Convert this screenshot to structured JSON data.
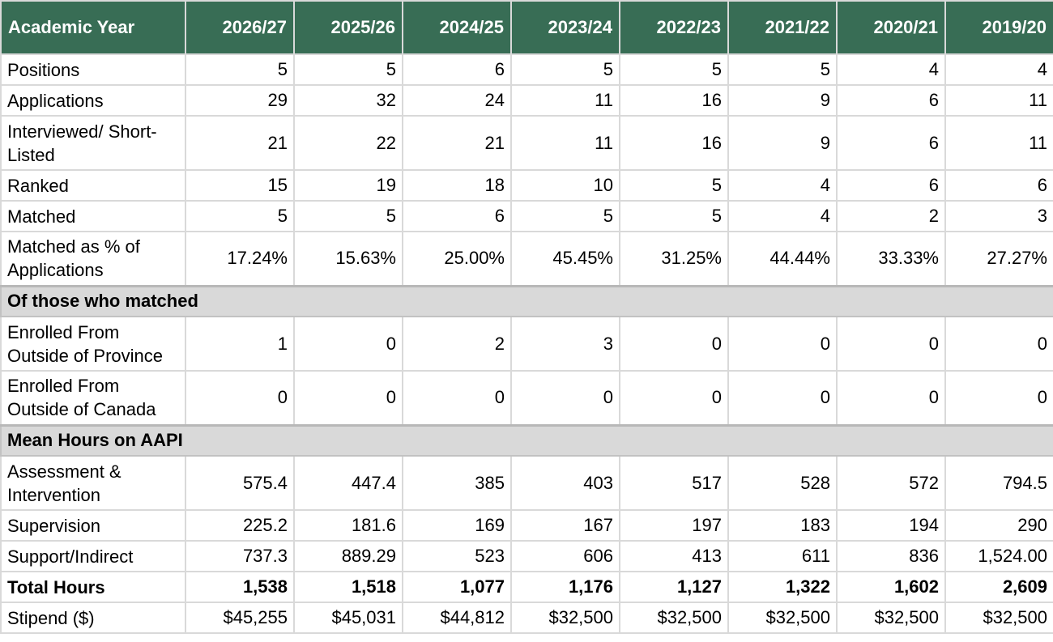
{
  "table": {
    "header": {
      "label": "Academic Year",
      "years": [
        "2026/27",
        "2025/26",
        "2024/25",
        "2023/24",
        "2022/23",
        "2021/22",
        "2020/21",
        "2019/20"
      ]
    },
    "rows": [
      {
        "name": "positions",
        "label": "Positions",
        "values": [
          "5",
          "5",
          "6",
          "5",
          "5",
          "5",
          "4",
          "4"
        ]
      },
      {
        "name": "applications",
        "label": "Applications",
        "values": [
          "29",
          "32",
          "24",
          "11",
          "16",
          "9",
          "6",
          "11"
        ]
      },
      {
        "name": "interviewed",
        "label": "Interviewed/ Short-Listed",
        "values": [
          "21",
          "22",
          "21",
          "11",
          "16",
          "9",
          "6",
          "11"
        ]
      },
      {
        "name": "ranked",
        "label": "Ranked",
        "values": [
          "15",
          "19",
          "18",
          "10",
          "5",
          "4",
          "6",
          "6"
        ]
      },
      {
        "name": "matched",
        "label": "Matched",
        "values": [
          "5",
          "5",
          "6",
          "5",
          "5",
          "4",
          "2",
          "3"
        ]
      },
      {
        "name": "matched-pct",
        "label": "Matched as % of Applications",
        "values": [
          "17.24%",
          "15.63%",
          "25.00%",
          "45.45%",
          "31.25%",
          "44.44%",
          "33.33%",
          "27.27%"
        ]
      }
    ],
    "section_matched": {
      "label": "Of those who matched",
      "rows": [
        {
          "name": "outside-province",
          "label": "Enrolled From Outside of Province",
          "values": [
            "1",
            "0",
            "2",
            "3",
            "0",
            "0",
            "0",
            "0"
          ]
        },
        {
          "name": "outside-canada",
          "label": "Enrolled From Outside of Canada",
          "values": [
            "0",
            "0",
            "0",
            "0",
            "0",
            "0",
            "0",
            "0"
          ]
        }
      ]
    },
    "section_hours": {
      "label": "Mean Hours on AAPI",
      "rows": [
        {
          "name": "assessment",
          "label": "Assessment & Intervention",
          "values": [
            "575.4",
            "447.4",
            "385",
            "403",
            "517",
            "528",
            "572",
            "794.5"
          ]
        },
        {
          "name": "supervision",
          "label": "Supervision",
          "values": [
            "225.2",
            "181.6",
            "169",
            "167",
            "197",
            "183",
            "194",
            "290"
          ]
        },
        {
          "name": "support",
          "label": "Support/Indirect",
          "values": [
            "737.3",
            "889.29",
            "523",
            "606",
            "413",
            "611",
            "836",
            "1,524.00"
          ]
        },
        {
          "name": "total-hours",
          "label": "Total Hours",
          "values": [
            "1,538",
            "1,518",
            "1,077",
            "1,176",
            "1,127",
            "1,322",
            "1,602",
            "2,609"
          ]
        },
        {
          "name": "stipend",
          "label": "Stipend ($)",
          "values": [
            "$45,255",
            "$45,031",
            "$44,812",
            "$32,500",
            "$32,500",
            "$32,500",
            "$32,500",
            "$32,500"
          ]
        }
      ]
    }
  },
  "colors": {
    "header_bg": "#386d55",
    "header_text": "#ffffff",
    "section_bg": "#d9d9d9",
    "grid": "#d9d9d9"
  }
}
